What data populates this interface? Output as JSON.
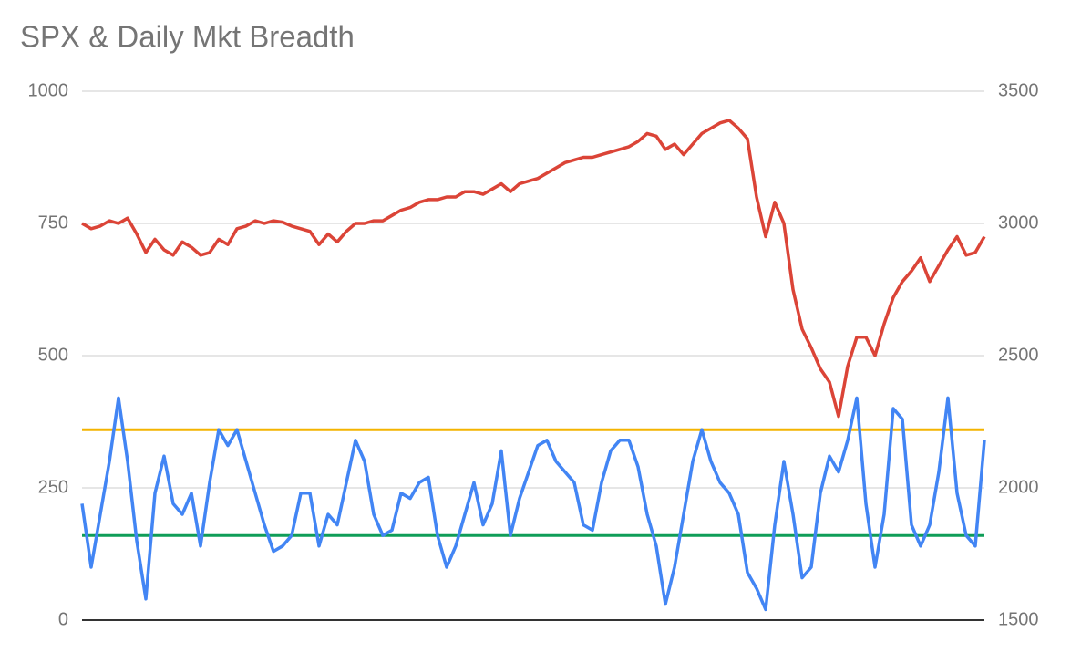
{
  "chart_data": {
    "type": "line",
    "title": "SPX & Daily Mkt Breadth",
    "ylim": [
      0,
      1000
    ],
    "yticks": [
      0,
      250,
      500,
      750,
      1000
    ],
    "y2lim": [
      1500,
      3500
    ],
    "y2ticks": [
      1500,
      2000,
      2500,
      3000,
      3500
    ],
    "grid": true,
    "series": [
      {
        "name": "SPX",
        "color": "#db4437",
        "axis": "y2",
        "values": [
          3000,
          2980,
          2990,
          3010,
          3000,
          3020,
          2960,
          2890,
          2940,
          2900,
          2880,
          2930,
          2910,
          2880,
          2890,
          2940,
          2920,
          2980,
          2990,
          3010,
          3000,
          3010,
          3005,
          2990,
          2980,
          2970,
          2920,
          2960,
          2930,
          2970,
          3000,
          3000,
          3010,
          3010,
          3030,
          3050,
          3060,
          3080,
          3090,
          3090,
          3100,
          3100,
          3120,
          3120,
          3110,
          3130,
          3150,
          3120,
          3150,
          3160,
          3170,
          3190,
          3210,
          3230,
          3240,
          3250,
          3250,
          3260,
          3270,
          3280,
          3290,
          3310,
          3340,
          3330,
          3280,
          3300,
          3260,
          3300,
          3340,
          3360,
          3380,
          3390,
          3360,
          3320,
          3100,
          2950,
          3080,
          3000,
          2750,
          2600,
          2530,
          2450,
          2400,
          2270,
          2460,
          2570,
          2570,
          2500,
          2620,
          2720,
          2780,
          2820,
          2870,
          2780,
          2840,
          2900,
          2950,
          2880,
          2890,
          2950
        ]
      },
      {
        "name": "Daily Mkt Breadth",
        "color": "#4285f4",
        "values": [
          220,
          100,
          200,
          300,
          420,
          300,
          150,
          40,
          240,
          310,
          220,
          200,
          240,
          140,
          260,
          360,
          330,
          360,
          300,
          240,
          180,
          130,
          140,
          160,
          240,
          240,
          140,
          200,
          180,
          260,
          340,
          300,
          200,
          160,
          170,
          240,
          230,
          260,
          270,
          160,
          100,
          140,
          200,
          260,
          180,
          220,
          320,
          160,
          230,
          280,
          330,
          340,
          300,
          280,
          260,
          180,
          170,
          260,
          320,
          340,
          340,
          290,
          200,
          140,
          30,
          100,
          200,
          300,
          360,
          300,
          260,
          240,
          200,
          90,
          60,
          20,
          180,
          300,
          200,
          80,
          100,
          240,
          310,
          280,
          340,
          420,
          220,
          100,
          200,
          400,
          380,
          180,
          140,
          180,
          280,
          420,
          240,
          160,
          140,
          340
        ]
      }
    ],
    "reference_lines": [
      {
        "value": 360,
        "color": "#f4b400"
      },
      {
        "value": 160,
        "color": "#0f9d58"
      }
    ]
  }
}
